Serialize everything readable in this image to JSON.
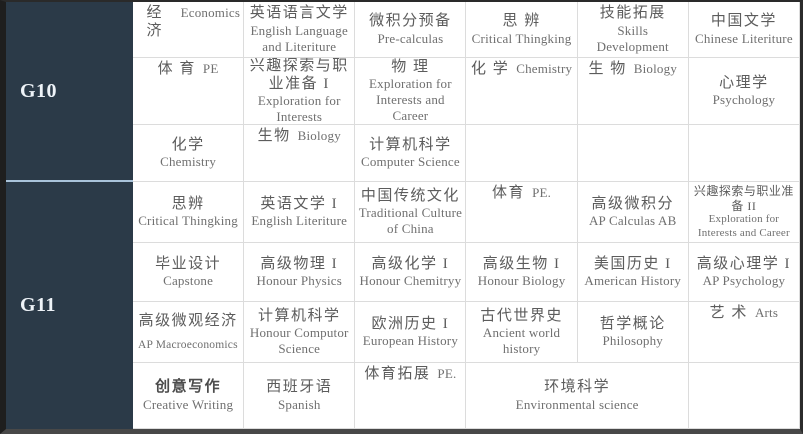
{
  "palette": {
    "sidebar_navy": "#2b3a48",
    "sidebar_divider_blue": "#a9c3da",
    "cell_border_gray": "#dcdcdc",
    "chinese_text": "#5c5c5c",
    "english_text": "#6f6f6f",
    "label_text": "#eef3f8",
    "outer_border": "#2a2a2a"
  },
  "table": {
    "groups": [
      {
        "label": "G10",
        "rows": [
          [
            {
              "zh": "经 济",
              "en": "Economics",
              "layout": "inline"
            },
            {
              "zh": "英语语言文学",
              "en": "English Language and Literiture"
            },
            {
              "zh": "微积分预备",
              "en": "Pre-calculas"
            },
            {
              "zh": "思 辨",
              "en": "Critical Thingking"
            },
            {
              "zh": "技能拓展",
              "en": "Skills Development"
            },
            {
              "zh": "中国文学",
              "en": "Chinese Literiture"
            }
          ],
          [
            {
              "zh": "体 育",
              "en": "PE",
              "layout": "inline"
            },
            {
              "zh": "兴趣探索与职业准备 I",
              "en": "Exploration for Interests"
            },
            {
              "zh": "物 理",
              "en": "Exploration for Interests and Career"
            },
            {
              "zh": "化 学",
              "en": "Chemistry",
              "layout": "inline"
            },
            {
              "zh": "生 物",
              "en": "Biology",
              "layout": "inline"
            },
            {
              "zh": "心理学",
              "en": "Psychology"
            }
          ],
          [
            {
              "zh": "化学",
              "en": "Chemistry"
            },
            {
              "zh": "生物",
              "en": "Biology",
              "layout": "inline"
            },
            {
              "zh": "计算机科学",
              "en": "Computer Science"
            },
            {
              "empty": true
            },
            {
              "empty": true
            },
            {
              "empty": true
            }
          ]
        ]
      },
      {
        "label": "G11",
        "rows": [
          [
            {
              "zh": "思辨",
              "en": "Critical Thingking"
            },
            {
              "zh": "英语文学 I",
              "en": "English Literiture"
            },
            {
              "zh": "中国传统文化",
              "en": "Traditional Culture of China"
            },
            {
              "zh": "体育",
              "en": "PE.",
              "layout": "inline"
            },
            {
              "zh": "高级微积分",
              "en": "AP Calculas AB"
            },
            {
              "zh": "兴趣探索与职业准备 II",
              "en": "Exploration for Interests and Career",
              "variant": "small"
            }
          ],
          [
            {
              "zh": "毕业设计",
              "en": "Capstone"
            },
            {
              "zh": "高级物理 I",
              "en": "Honour Physics"
            },
            {
              "zh": "高级化学 I",
              "en": "Honour Chemitryy"
            },
            {
              "zh": "高级生物 I",
              "en": "Honour Biology"
            },
            {
              "zh": "美国历史 I",
              "en": "American History"
            },
            {
              "zh": "高级心理学 I",
              "en": "AP Psychology"
            }
          ],
          [
            {
              "zh": "高级微观经济",
              "en": "AP Macroeconomics",
              "variant": "en-small-left"
            },
            {
              "zh": "计算机科学",
              "en": "Honour Computor Science"
            },
            {
              "zh": "欧洲历史 I",
              "en": "European History"
            },
            {
              "zh": "古代世界史",
              "en": "Ancient world history"
            },
            {
              "zh": "哲学概论",
              "en": "Philosophy"
            },
            {
              "zh": "艺 术",
              "en": "Arts",
              "layout": "inline"
            }
          ],
          [
            {
              "zh": "创意写作",
              "en": "Creative Writing",
              "variant": "bold-zh"
            },
            {
              "zh": "西班牙语",
              "en": "Spanish"
            },
            {
              "zh": "体育拓展",
              "en": "PE.",
              "layout": "inline"
            },
            {
              "zh": "环境科学",
              "en": "Environmental science",
              "colspan": 2
            },
            {
              "empty": true
            }
          ]
        ]
      }
    ]
  }
}
